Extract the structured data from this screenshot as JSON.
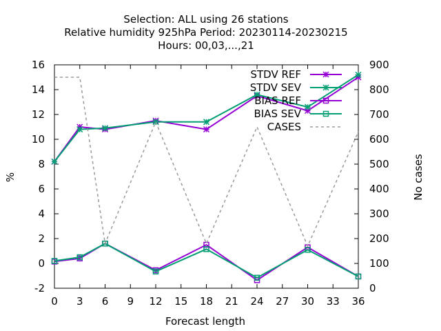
{
  "chart_data": {
    "type": "line",
    "title_lines": [
      "Selection: ALL using    26 stations",
      "Relative humidity 925hPa   Period: 20230114-20230215",
      "Hours:  00,03,...,21"
    ],
    "xlabel": "Forecast length",
    "ylabel": "%",
    "y2label": "No cases",
    "xlim": [
      0,
      36
    ],
    "ylim": [
      -2,
      16
    ],
    "y2lim": [
      0,
      900
    ],
    "xticks": [
      0,
      3,
      6,
      9,
      12,
      15,
      18,
      21,
      24,
      27,
      30,
      33,
      36
    ],
    "yticks": [
      -2,
      0,
      2,
      4,
      6,
      8,
      10,
      12,
      14,
      16
    ],
    "y2ticks": [
      0,
      100,
      200,
      300,
      400,
      500,
      600,
      700,
      800,
      900
    ],
    "x": [
      0,
      3,
      6,
      12,
      18,
      24,
      30,
      36
    ],
    "legend_position": "top-right",
    "series": [
      {
        "name": "STDV REF",
        "axis": "y",
        "color": "#9400d3",
        "marker": "star",
        "dashed": false,
        "values": [
          8.2,
          11.0,
          10.8,
          11.5,
          10.8,
          13.5,
          12.3,
          15.0
        ]
      },
      {
        "name": "STDV SEV",
        "axis": "y",
        "color": "#009e73",
        "marker": "star",
        "dashed": false,
        "values": [
          8.2,
          10.8,
          10.9,
          11.4,
          11.4,
          13.6,
          12.6,
          15.2
        ]
      },
      {
        "name": "BIAS REF",
        "axis": "y",
        "color": "#9400d3",
        "marker": "square",
        "dashed": false,
        "values": [
          0.15,
          0.4,
          1.6,
          -0.55,
          1.5,
          -1.35,
          1.3,
          -1.05
        ]
      },
      {
        "name": "BIAS SEV",
        "axis": "y",
        "color": "#009e73",
        "marker": "square",
        "dashed": false,
        "values": [
          0.2,
          0.5,
          1.6,
          -0.65,
          1.15,
          -1.15,
          1.1,
          -1.05
        ]
      },
      {
        "name": "CASES",
        "axis": "y2",
        "color": "#999999",
        "marker": "none",
        "dashed": true,
        "values": [
          850,
          850,
          180,
          670,
          180,
          650,
          170,
          630
        ]
      }
    ]
  }
}
